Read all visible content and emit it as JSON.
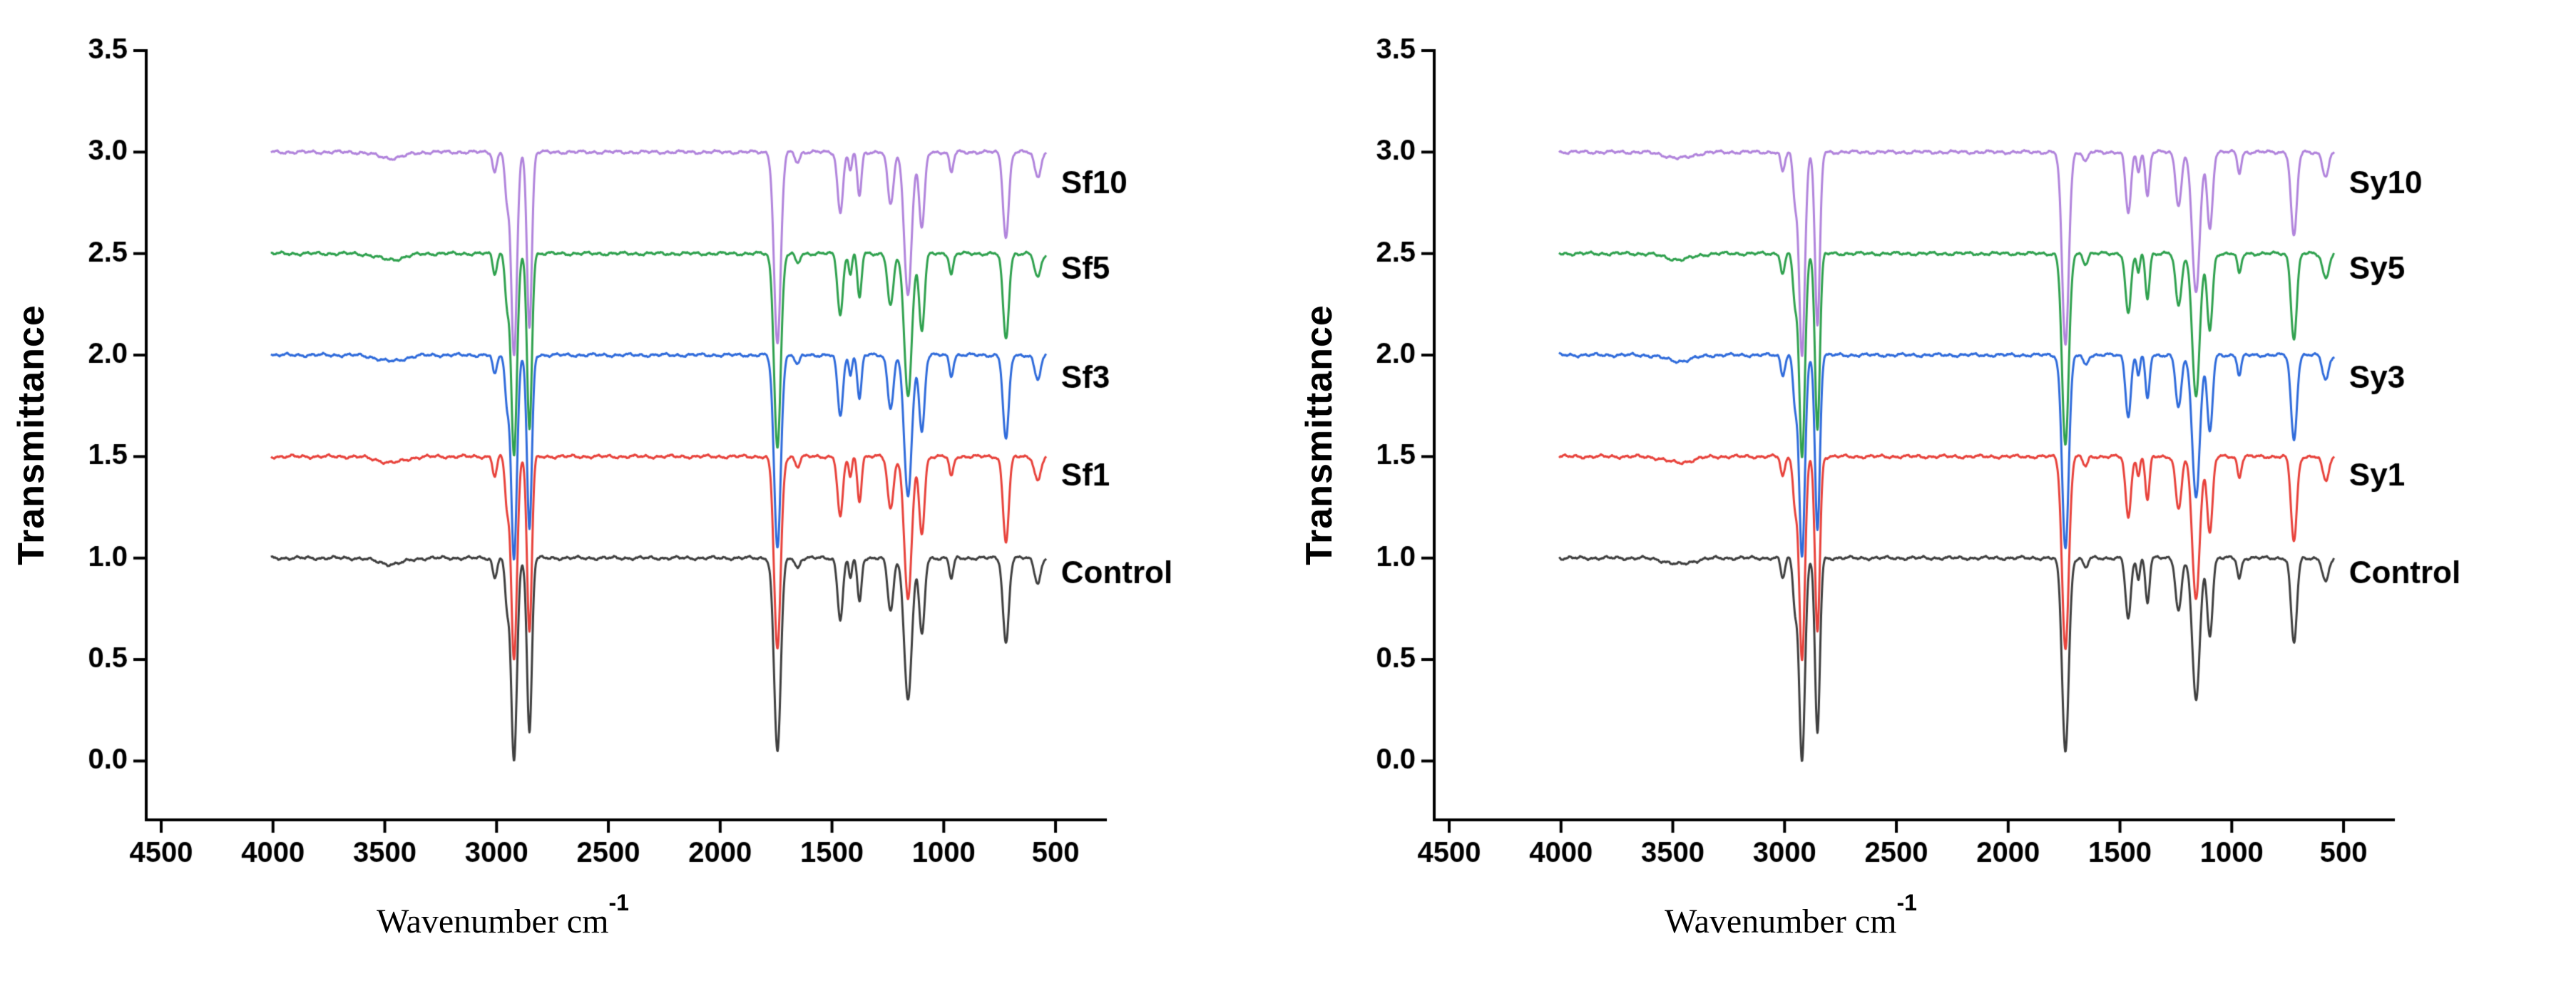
{
  "figure": {
    "description_left_panel": "FTIR transmittance spectra, Sf series vs Control",
    "description_right_panel": "FTIR transmittance spectra, Sy series vs Control"
  },
  "chart_data": [
    {
      "type": "line",
      "title": "",
      "xlabel": "Wavenumber cm",
      "xlabel_sup": "-1",
      "ylabel": "Transmittance",
      "xlim": [
        4567,
        277
      ],
      "ylim": [
        -0.29,
        3.5
      ],
      "x_ticks": [
        4500,
        4000,
        3500,
        3000,
        2500,
        2000,
        1500,
        1000,
        500
      ],
      "y_ticks": [
        0.0,
        0.5,
        1.0,
        1.5,
        2.0,
        2.5,
        3.0,
        3.5
      ],
      "grid": false,
      "legend_position": "right-of-curves",
      "data_range": [
        4005,
        545
      ],
      "label_x": 520,
      "seed": 0,
      "series": [
        {
          "name": "Control",
          "color": "#3f3f3f",
          "offset": 1.0,
          "label_y": 0.92
        },
        {
          "name": "Sf1",
          "color": "#e8423b",
          "offset": 1.5,
          "label_y": 1.4
        },
        {
          "name": "Sf3",
          "color": "#2f6bdb",
          "offset": 2.0,
          "label_y": 1.88
        },
        {
          "name": "Sf5",
          "color": "#2fa14e",
          "offset": 2.5,
          "label_y": 2.42
        },
        {
          "name": "Sf10",
          "color": "#b184dc",
          "offset": 3.0,
          "label_y": 2.84
        }
      ],
      "absorption_bands": [
        {
          "center": 3472,
          "sigma": 60,
          "depth": 0.03
        },
        {
          "center": 3008,
          "sigma": 9,
          "depth": 0.1
        },
        {
          "center": 2954,
          "sigma": 9,
          "depth": 0.22
        },
        {
          "center": 2922,
          "sigma": 13,
          "depth": 1.0
        },
        {
          "center": 2853,
          "sigma": 11,
          "depth": 0.86
        },
        {
          "center": 1744,
          "sigma": 15,
          "depth": 0.95
        },
        {
          "center": 1654,
          "sigma": 10,
          "depth": 0.05
        },
        {
          "center": 1463,
          "sigma": 12,
          "depth": 0.3
        },
        {
          "center": 1418,
          "sigma": 7,
          "depth": 0.1
        },
        {
          "center": 1377,
          "sigma": 9,
          "depth": 0.22
        },
        {
          "center": 1238,
          "sigma": 13,
          "depth": 0.26
        },
        {
          "center": 1160,
          "sigma": 17,
          "depth": 0.7
        },
        {
          "center": 1098,
          "sigma": 12,
          "depth": 0.38
        },
        {
          "center": 966,
          "sigma": 9,
          "depth": 0.1
        },
        {
          "center": 722,
          "sigma": 13,
          "depth": 0.42
        },
        {
          "center": 580,
          "sigma": 14,
          "depth": 0.12
        }
      ]
    },
    {
      "type": "line",
      "title": "",
      "xlabel": "Wavenumber cm",
      "xlabel_sup": "-1",
      "ylabel": "Transmittance",
      "xlim": [
        4567,
        277
      ],
      "ylim": [
        -0.29,
        3.5
      ],
      "x_ticks": [
        4500,
        4000,
        3500,
        3000,
        2500,
        2000,
        1500,
        1000,
        500
      ],
      "y_ticks": [
        0.0,
        0.5,
        1.0,
        1.5,
        2.0,
        2.5,
        3.0,
        3.5
      ],
      "grid": false,
      "legend_position": "right-of-curves",
      "data_range": [
        4005,
        545
      ],
      "label_x": 520,
      "seed": 1,
      "series": [
        {
          "name": "Control",
          "color": "#3f3f3f",
          "offset": 1.0,
          "label_y": 0.92
        },
        {
          "name": "Sy1",
          "color": "#e8423b",
          "offset": 1.5,
          "label_y": 1.4
        },
        {
          "name": "Sy3",
          "color": "#2f6bdb",
          "offset": 2.0,
          "label_y": 1.88
        },
        {
          "name": "Sy5",
          "color": "#2fa14e",
          "offset": 2.5,
          "label_y": 2.42
        },
        {
          "name": "Sy10",
          "color": "#b184dc",
          "offset": 3.0,
          "label_y": 2.84
        }
      ],
      "absorption_bands": [
        {
          "center": 3472,
          "sigma": 60,
          "depth": 0.03
        },
        {
          "center": 3008,
          "sigma": 9,
          "depth": 0.1
        },
        {
          "center": 2954,
          "sigma": 9,
          "depth": 0.22
        },
        {
          "center": 2922,
          "sigma": 13,
          "depth": 1.0
        },
        {
          "center": 2853,
          "sigma": 11,
          "depth": 0.86
        },
        {
          "center": 1744,
          "sigma": 15,
          "depth": 0.95
        },
        {
          "center": 1654,
          "sigma": 10,
          "depth": 0.05
        },
        {
          "center": 1463,
          "sigma": 12,
          "depth": 0.3
        },
        {
          "center": 1418,
          "sigma": 7,
          "depth": 0.1
        },
        {
          "center": 1377,
          "sigma": 9,
          "depth": 0.22
        },
        {
          "center": 1238,
          "sigma": 13,
          "depth": 0.26
        },
        {
          "center": 1160,
          "sigma": 17,
          "depth": 0.7
        },
        {
          "center": 1098,
          "sigma": 12,
          "depth": 0.38
        },
        {
          "center": 966,
          "sigma": 9,
          "depth": 0.1
        },
        {
          "center": 722,
          "sigma": 13,
          "depth": 0.42
        },
        {
          "center": 580,
          "sigma": 14,
          "depth": 0.12
        }
      ]
    }
  ]
}
